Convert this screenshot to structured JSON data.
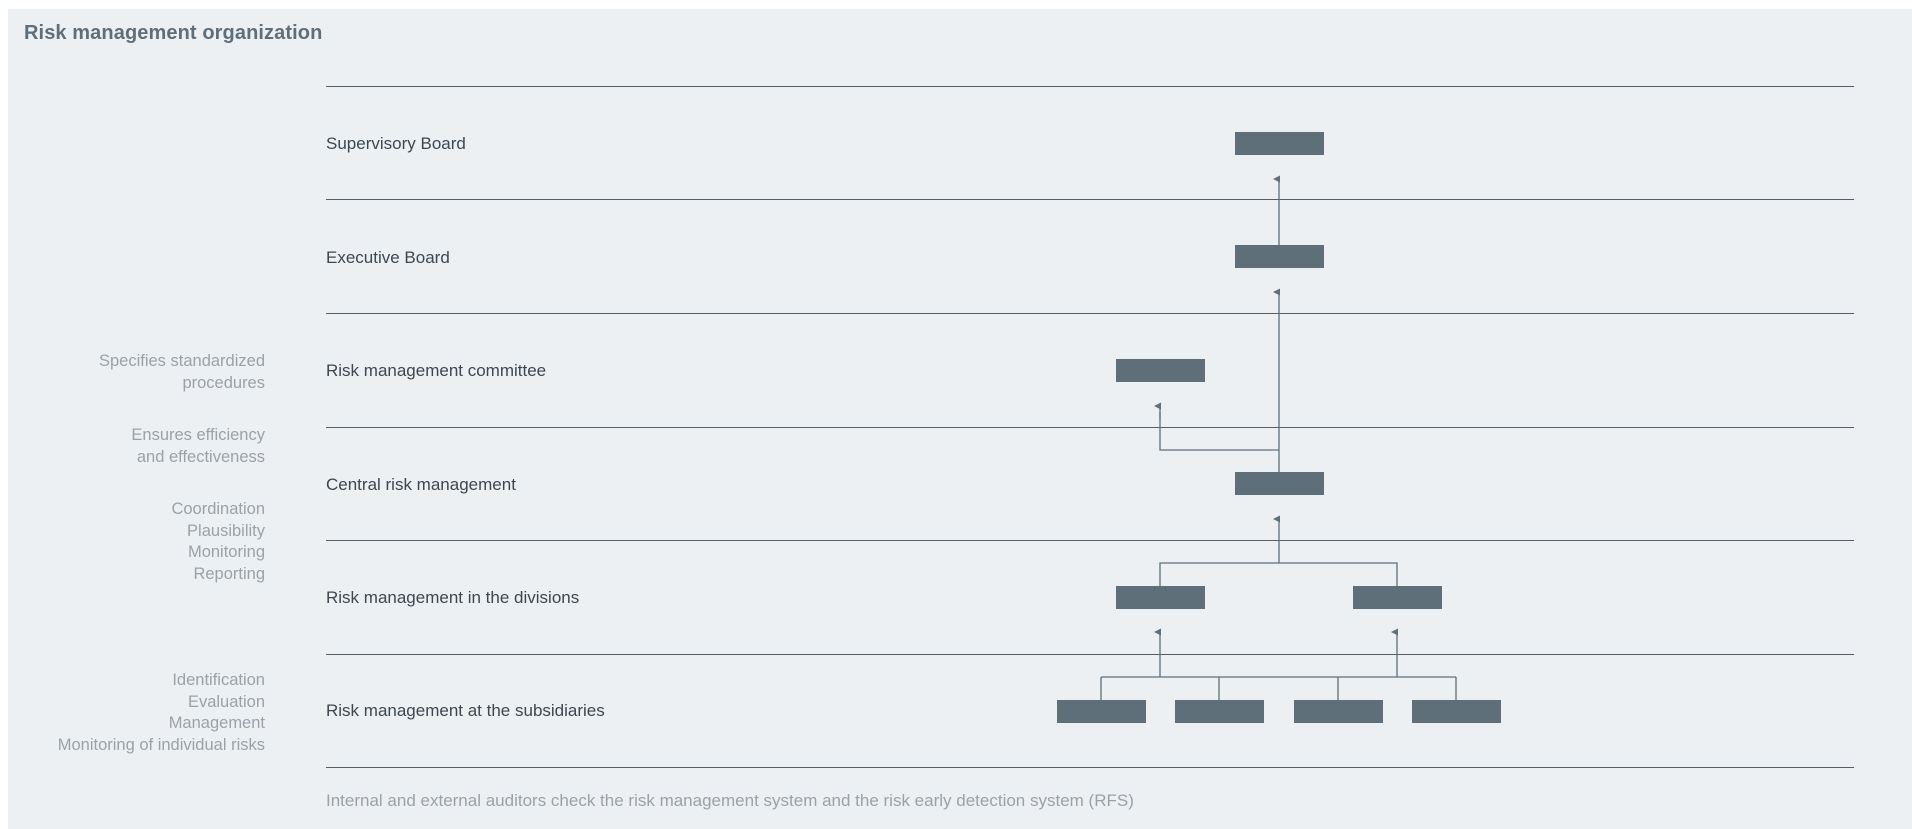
{
  "title": "Risk management organization",
  "levels": [
    {
      "label": "Supervisory Board"
    },
    {
      "label": "Executive Board"
    },
    {
      "label": "Risk management committee"
    },
    {
      "label": "Central risk management"
    },
    {
      "label": "Risk management in the divisions"
    },
    {
      "label": "Risk management at the subsidiaries"
    }
  ],
  "notes": {
    "committee": [
      "Specifies standardized",
      "procedures"
    ],
    "efficiency": [
      "Ensures efficiency",
      "and effectiveness"
    ],
    "central": [
      "Coordination",
      "Plausibility",
      "Monitoring",
      "Reporting"
    ],
    "subsidiaries": [
      "Identification",
      "Evaluation",
      "Management",
      "Monitoring of individual risks"
    ]
  },
  "footnote": "Internal and external auditors check the risk management system and the risk early detection system (RFS)",
  "colors": {
    "box": "#5f6f7a",
    "connector": "#5f6f7a",
    "rule": "#555e66",
    "background": "#edf0f3",
    "note_text": "#9aa2a8",
    "label_text": "#3d4750"
  }
}
